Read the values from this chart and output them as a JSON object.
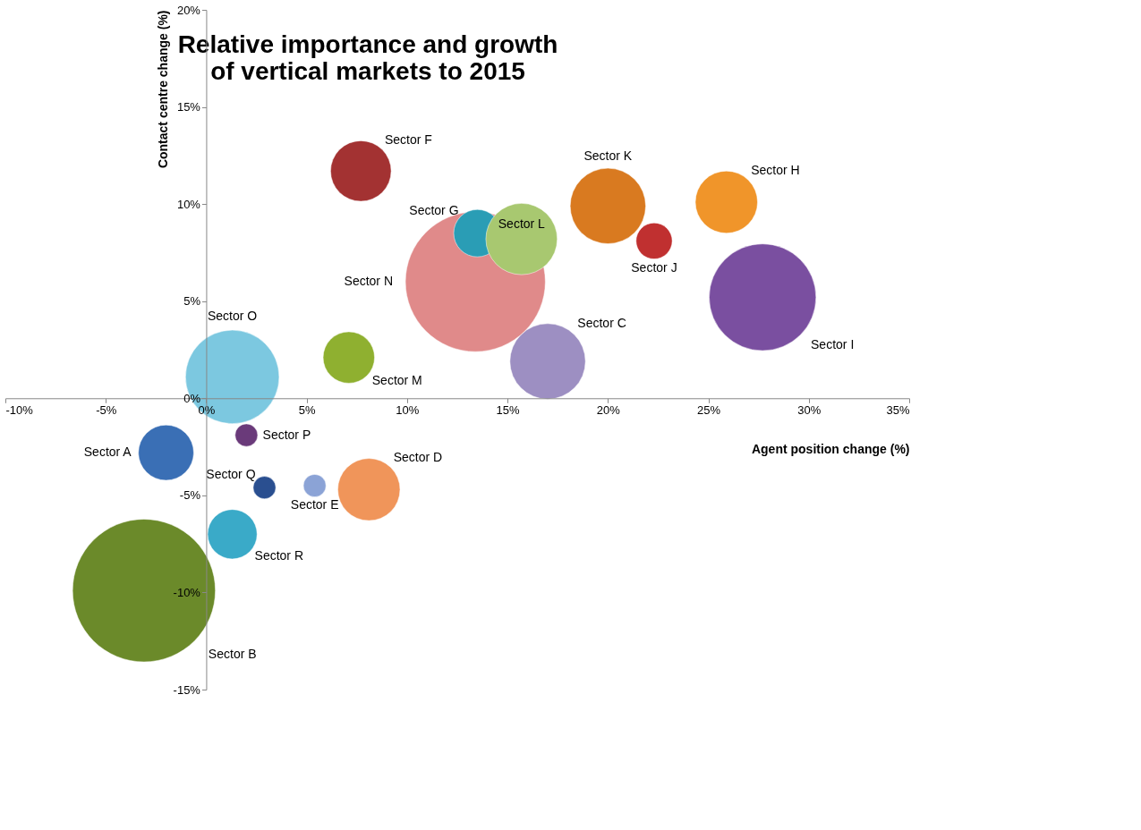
{
  "chart_data": {
    "type": "bubble",
    "title": "Relative importance and growth\nof vertical markets to 2015",
    "xlabel": "Agent position change (%)",
    "ylabel": "Contact centre change (%)",
    "xlim": [
      -10,
      35
    ],
    "ylim": [
      -15,
      20
    ],
    "xticks": [
      {
        "value": -10,
        "label": "-10%"
      },
      {
        "value": -5,
        "label": "-5%"
      },
      {
        "value": 0,
        "label": "0%"
      },
      {
        "value": 5,
        "label": "5%"
      },
      {
        "value": 10,
        "label": "10%"
      },
      {
        "value": 15,
        "label": "15%"
      },
      {
        "value": 20,
        "label": "20%"
      },
      {
        "value": 25,
        "label": "25%"
      },
      {
        "value": 30,
        "label": "30%"
      },
      {
        "value": 35,
        "label": "35%"
      }
    ],
    "yticks": [
      {
        "value": -15,
        "label": "-15%"
      },
      {
        "value": -10,
        "label": "-10%"
      },
      {
        "value": -5,
        "label": "-5%"
      },
      {
        "value": 0,
        "label": "0%"
      },
      {
        "value": 5,
        "label": "5%"
      },
      {
        "value": 10,
        "label": "10%"
      },
      {
        "value": 15,
        "label": "15%"
      },
      {
        "value": 20,
        "label": "20%"
      }
    ],
    "grid": false,
    "series": [
      {
        "name": "Sector A",
        "color": "#3a6fb5",
        "x": [
          -2.0
        ],
        "values": [
          -2.8
        ],
        "sizes": [
          0.15
        ]
      },
      {
        "name": "Sector B",
        "color": "#6b8a2a",
        "x": [
          -3.1
        ],
        "values": [
          -9.9
        ],
        "sizes": [
          1.0
        ]
      },
      {
        "name": "Sector C",
        "color": "#9d8fc2",
        "x": [
          17.0
        ],
        "values": [
          1.9
        ],
        "sizes": [
          0.28
        ]
      },
      {
        "name": "Sector D",
        "color": "#f0955a",
        "x": [
          8.1
        ],
        "values": [
          -4.7
        ],
        "sizes": [
          0.19
        ]
      },
      {
        "name": "Sector E",
        "color": "#8ba3d6",
        "x": [
          5.4
        ],
        "values": [
          -4.5
        ],
        "sizes": [
          0.025
        ]
      },
      {
        "name": "Sector F",
        "color": "#a33232",
        "x": [
          7.7
        ],
        "values": [
          11.7
        ],
        "sizes": [
          0.18
        ]
      },
      {
        "name": "Sector N",
        "color": "#e08a8a",
        "x": [
          13.4
        ],
        "values": [
          6.0
        ],
        "sizes": [
          0.96
        ]
      },
      {
        "name": "Sector G",
        "color": "#2a9db5",
        "x": [
          13.5
        ],
        "values": [
          8.5
        ],
        "sizes": [
          0.11
        ]
      },
      {
        "name": "Sector H",
        "color": "#f0952a",
        "x": [
          25.9
        ],
        "values": [
          10.1
        ],
        "sizes": [
          0.19
        ]
      },
      {
        "name": "Sector I",
        "color": "#7a4fa0",
        "x": [
          27.7
        ],
        "values": [
          5.2
        ],
        "sizes": [
          0.56
        ]
      },
      {
        "name": "Sector J",
        "color": "#c03030",
        "x": [
          22.3
        ],
        "values": [
          8.1
        ],
        "sizes": [
          0.064
        ]
      },
      {
        "name": "Sector K",
        "color": "#d97a20",
        "x": [
          20.0
        ],
        "values": [
          9.9
        ],
        "sizes": [
          0.28
        ]
      },
      {
        "name": "Sector L",
        "color": "#a8c870",
        "x": [
          15.7
        ],
        "values": [
          8.2
        ],
        "sizes": [
          0.25
        ]
      },
      {
        "name": "Sector M",
        "color": "#8fb030",
        "x": [
          7.1
        ],
        "values": [
          2.1
        ],
        "sizes": [
          0.13
        ]
      },
      {
        "name": "Sector O",
        "color": "#7cc8e0",
        "x": [
          1.3
        ],
        "values": [
          1.1
        ],
        "sizes": [
          0.43
        ]
      },
      {
        "name": "Sector P",
        "color": "#6a3a7a",
        "x": [
          2.0
        ],
        "values": [
          -1.9
        ],
        "sizes": [
          0.025
        ]
      },
      {
        "name": "Sector Q",
        "color": "#2a4f90",
        "x": [
          2.9
        ],
        "values": [
          -4.6
        ],
        "sizes": [
          0.025
        ]
      },
      {
        "name": "Sector R",
        "color": "#3aaac8",
        "x": [
          1.3
        ],
        "values": [
          -7.0
        ],
        "sizes": [
          0.12
        ]
      }
    ]
  }
}
